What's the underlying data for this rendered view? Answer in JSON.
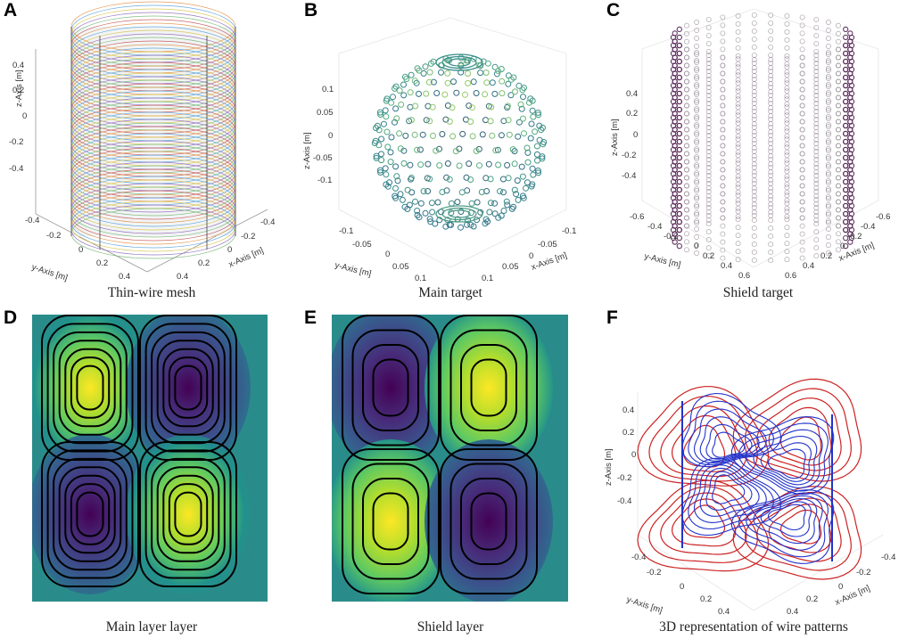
{
  "panels": [
    {
      "letter": "A",
      "caption": "Thin-wire mesh",
      "z_label": "z-Axis [m]",
      "y_label": "y-Axis [m]",
      "x_label": "x-Axis [m]",
      "z_ticks": [
        "0.4",
        "0.2",
        "0",
        "-0.2",
        "-0.4"
      ],
      "y_ticks": [
        "-0.4",
        "-0.2",
        "0",
        "0.2",
        "0.4"
      ],
      "x_ticks": [
        "-0.4",
        "-0.2",
        "0",
        "0.2",
        "0.4"
      ]
    },
    {
      "letter": "B",
      "caption": "Main target",
      "z_label": "z-Axis [m]",
      "y_label": "y-Axis [m]",
      "x_label": "x-Axis [m]",
      "z_ticks": [
        "0.1",
        "0.05",
        "0",
        "-0.05",
        "-0.1"
      ],
      "y_ticks": [
        "-0.1",
        "-0.05",
        "0",
        "0.05",
        "0.1"
      ],
      "x_ticks": [
        "-0.1",
        "-0.05",
        "0",
        "0.05",
        "0.1"
      ]
    },
    {
      "letter": "C",
      "caption": "Shield target",
      "z_label": "z-Axis [m]",
      "y_label": "y-Axis [m]",
      "x_label": "x-Axis [m]",
      "z_ticks": [
        "0.4",
        "0.2",
        "0",
        "-0.2",
        "-0.4"
      ],
      "y_ticks": [
        "-0.6",
        "-0.4",
        "-0.2",
        "0",
        "0.2",
        "0.4",
        "0.6"
      ],
      "x_ticks": [
        "-0.6",
        "-0.4",
        "-0.2",
        "0",
        "0.2",
        "0.4",
        "0.6"
      ]
    },
    {
      "letter": "D",
      "caption": "Main layer layer"
    },
    {
      "letter": "E",
      "caption": "Shield layer"
    },
    {
      "letter": "F",
      "caption": "3D representation of wire patterns",
      "z_label": "z-Axis [m]",
      "y_label": "y-Axis [m]",
      "x_label": "x-Axis [m]",
      "z_ticks": [
        "0.4",
        "0.2",
        "0",
        "-0.2",
        "-0.4"
      ],
      "y_ticks": [
        "-0.4",
        "-0.2",
        "0",
        "0.2",
        "0.4"
      ],
      "x_ticks": [
        "-0.4",
        "-0.2",
        "0",
        "0.2",
        "0.4"
      ]
    }
  ],
  "colors": {
    "viridis_dark": "#440154",
    "viridis_mid": "#21918c",
    "viridis_yellow": "#fde725",
    "wire_red": "#cc2222",
    "wire_blue": "#2233cc",
    "shield_marker": "#5a2a5a"
  }
}
